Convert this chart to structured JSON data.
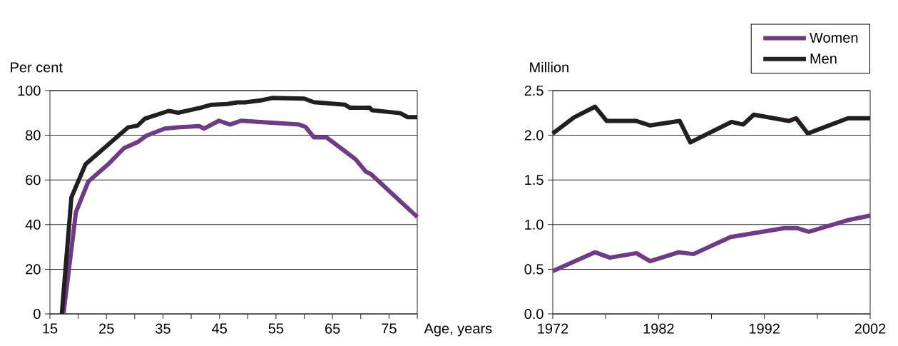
{
  "chart_data": [
    {
      "type": "line",
      "ylabel": "Per cent",
      "xlabel": "Age, years",
      "xlim": [
        15,
        80
      ],
      "ylim": [
        0,
        100
      ],
      "xticks": [
        15,
        {
          "value": 20,
          "label": null
        },
        25,
        {
          "value": 30,
          "label": null
        },
        35,
        {
          "value": 40,
          "label": null
        },
        45,
        {
          "value": 50,
          "label": null
        },
        55,
        {
          "value": 60,
          "label": null
        },
        65,
        {
          "value": 70,
          "label": null
        },
        75,
        {
          "value": 80,
          "label": null
        }
      ],
      "yticks": [
        0,
        20,
        40,
        60,
        80,
        100
      ],
      "grid": "y",
      "legend": false,
      "series": [
        {
          "color": "#6f3a87",
          "x": [
            17.4,
            19.6,
            21.8,
            25.3,
            28.1,
            30.5,
            32,
            35.3,
            37.3,
            41.4,
            42.3,
            44.9,
            46.9,
            48.8,
            59.1,
            60.2,
            61.7,
            63.9,
            66.5,
            69.1,
            70.9,
            71.8,
            80
          ],
          "values": [
            0,
            45.6,
            59.3,
            67,
            74.2,
            76.9,
            79.7,
            83,
            83.5,
            84.1,
            83,
            86.5,
            84.8,
            86.5,
            84.8,
            83.8,
            79.1,
            79.1,
            74.2,
            69.2,
            63.7,
            62.6,
            43.4
          ]
        },
        {
          "color": "#231f20",
          "x": [
            17.1,
            18.8,
            21.3,
            25.3,
            28.8,
            30.5,
            31.8,
            36,
            37.7,
            41.6,
            43.4,
            46.4,
            48.2,
            49.5,
            52.3,
            54.3,
            60,
            61.7,
            67.2,
            68.1,
            71.6,
            72,
            77,
            78.3,
            80
          ],
          "values": [
            0,
            52.2,
            67,
            75.8,
            83.5,
            84.3,
            87.4,
            90.9,
            90.1,
            92.3,
            93.6,
            94,
            94.7,
            94.7,
            95.6,
            96.7,
            96.4,
            94.8,
            93.7,
            92.3,
            92.3,
            91.2,
            89.9,
            88.1,
            88.1
          ]
        }
      ]
    },
    {
      "type": "line",
      "ylabel": "Million",
      "xlim": [
        1972,
        2002
      ],
      "ylim": [
        0,
        2.5
      ],
      "xticks": [
        1972,
        {
          "value": 1977,
          "label": null
        },
        1982,
        {
          "value": 1987,
          "label": null
        },
        1992,
        {
          "value": 1997,
          "label": null
        },
        2002
      ],
      "yticks": [
        {
          "value": 0,
          "label": "0.0"
        },
        0.5,
        {
          "value": 1,
          "label": "1.0"
        },
        1.5,
        {
          "value": 2,
          "label": "2.0"
        },
        2.5
      ],
      "grid": "y",
      "legend": "top right",
      "series": [
        {
          "name": "Women",
          "color": "#6f3a87",
          "x": [
            1972,
            1976,
            1977.4,
            1979.9,
            1981.2,
            1983.9,
            1985.3,
            1988.8,
            1993.9,
            1995.1,
            1996.2,
            1999.9,
            2002
          ],
          "values": [
            0.48,
            0.69,
            0.63,
            0.68,
            0.59,
            0.69,
            0.67,
            0.86,
            0.96,
            0.96,
            0.92,
            1.05,
            1.1
          ]
        },
        {
          "name": "Men",
          "color": "#231f20",
          "x": [
            1972,
            1974,
            1976,
            1977.1,
            1979.9,
            1981.2,
            1984,
            1985,
            1988.9,
            1990,
            1991,
            1994.3,
            1995,
            1996.1,
            1999.9,
            2002
          ],
          "values": [
            2.02,
            2.2,
            2.32,
            2.16,
            2.16,
            2.11,
            2.16,
            1.92,
            2.15,
            2.12,
            2.23,
            2.16,
            2.19,
            2.02,
            2.19,
            2.19
          ]
        }
      ]
    }
  ]
}
